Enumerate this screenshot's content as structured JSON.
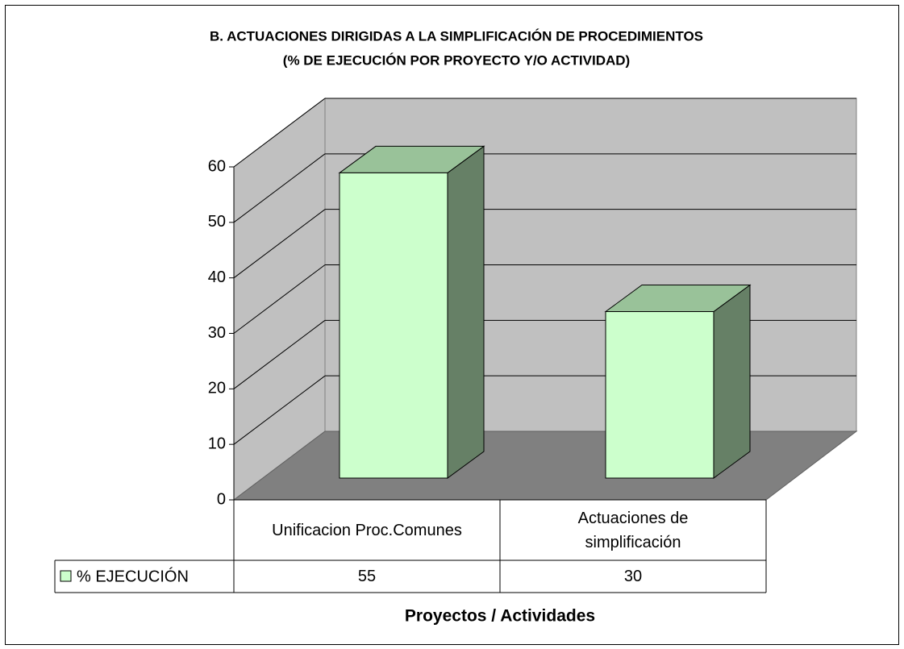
{
  "chart_data": {
    "type": "bar3d",
    "title": "B. ACTUACIONES DIRIGIDAS A LA SIMPLIFICACIÓN DE PROCEDIMIENTOS",
    "subtitle": "(% DE EJECUCIÓN POR PROYECTO Y/O ACTIVIDAD)",
    "x_label": "Proyectos / Actividades",
    "categories": [
      "Unificacion Proc.Comunes",
      "Actuaciones de simplificación"
    ],
    "series": [
      {
        "name": "% EJECUCIÓN",
        "color": "#ccffcc",
        "values": [
          55,
          30
        ]
      }
    ],
    "ylim": [
      0,
      60
    ],
    "yticks": [
      0,
      10,
      20,
      30,
      40,
      50,
      60
    ],
    "grid": true
  }
}
